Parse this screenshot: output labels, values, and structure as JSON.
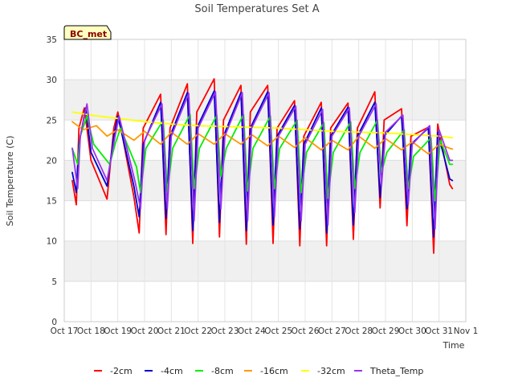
{
  "chart_data": {
    "type": "line",
    "title": "Soil Temperatures Set A",
    "xlabel": "Time",
    "ylabel": "Soil Temperature (C)",
    "badge": "BC_met",
    "ylim": [
      0,
      35
    ],
    "yticks": [
      0,
      5,
      10,
      15,
      20,
      25,
      30,
      35
    ],
    "xlim": [
      0,
      15
    ],
    "xticks": [
      {
        "value": 0,
        "label": "Oct 17"
      },
      {
        "value": 1,
        "label": "Oct 18"
      },
      {
        "value": 2,
        "label": "Oct 19"
      },
      {
        "value": 3,
        "label": "Oct 20"
      },
      {
        "value": 4,
        "label": "Oct 21"
      },
      {
        "value": 5,
        "label": "Oct 22"
      },
      {
        "value": 6,
        "label": "Oct 23"
      },
      {
        "value": 7,
        "label": "Oct 24"
      },
      {
        "value": 8,
        "label": "Oct 25"
      },
      {
        "value": 9,
        "label": "Oct 26"
      },
      {
        "value": 10,
        "label": "Oct 27"
      },
      {
        "value": 11,
        "label": "Oct 28"
      },
      {
        "value": 12,
        "label": "Oct 29"
      },
      {
        "value": 13,
        "label": "Oct 30"
      },
      {
        "value": 14,
        "label": "Oct 31"
      },
      {
        "value": 15,
        "label": "Nov 1"
      }
    ],
    "grid": true,
    "background_bands": "alternating gray",
    "legend_position": "bottom",
    "series": [
      {
        "name": "-2cm",
        "color": "#ff0000",
        "x": [
          0.3,
          0.45,
          0.55,
          0.75,
          1.0,
          1.6,
          1.85,
          2.0,
          2.6,
          2.8,
          2.95,
          3.6,
          3.8,
          3.95,
          4.6,
          4.8,
          4.95,
          5.6,
          5.8,
          5.95,
          6.6,
          6.8,
          6.95,
          7.6,
          7.8,
          7.95,
          8.6,
          8.8,
          8.95,
          9.6,
          9.8,
          9.95,
          10.6,
          10.8,
          10.95,
          11.6,
          11.8,
          11.95,
          12.6,
          12.8,
          12.95,
          13.6,
          13.8,
          13.95,
          14.4,
          14.5
        ],
        "y": [
          17.5,
          14.5,
          24,
          26.5,
          20,
          15.2,
          24,
          26,
          15.5,
          11,
          24,
          28.2,
          10.8,
          24,
          29.5,
          9.7,
          26,
          30.1,
          10.5,
          25,
          29.3,
          9.6,
          26,
          29.3,
          9.7,
          24,
          27.4,
          9.4,
          23,
          27.2,
          9.4,
          24,
          27.1,
          10.2,
          24,
          28.5,
          14.1,
          25,
          26.4,
          11.9,
          23,
          24.1,
          8.5,
          24.5,
          17,
          16.5
        ]
      },
      {
        "name": "-4cm",
        "color": "#0000cc",
        "x": [
          0.3,
          0.45,
          0.55,
          0.8,
          1.0,
          1.6,
          1.85,
          2.0,
          2.6,
          2.8,
          2.95,
          3.6,
          3.8,
          3.95,
          4.6,
          4.8,
          4.95,
          5.6,
          5.8,
          5.95,
          6.6,
          6.8,
          6.95,
          7.6,
          7.8,
          7.95,
          8.6,
          8.8,
          8.95,
          9.6,
          9.8,
          9.95,
          10.6,
          10.8,
          10.95,
          11.6,
          11.8,
          11.95,
          12.6,
          12.8,
          12.95,
          13.6,
          13.8,
          13.95,
          14.4,
          14.5
        ],
        "y": [
          18.5,
          16,
          22,
          26.5,
          21,
          16.8,
          23,
          25.5,
          16.8,
          13,
          22,
          27.2,
          12.8,
          23,
          28.4,
          11.3,
          24,
          28.6,
          12.3,
          23,
          28.4,
          11.3,
          24,
          28.5,
          12,
          23,
          26.8,
          11.5,
          22,
          26.5,
          11,
          23,
          26.6,
          12,
          23,
          27.2,
          15.4,
          23,
          25.5,
          14,
          22,
          24,
          10.5,
          23.5,
          17.7,
          17.5
        ]
      },
      {
        "name": "-8cm",
        "color": "#00ee00",
        "x": [
          0.3,
          0.5,
          0.6,
          0.85,
          1.1,
          1.7,
          1.9,
          2.1,
          2.7,
          2.85,
          3.05,
          3.7,
          3.85,
          4.05,
          4.7,
          4.85,
          5.05,
          5.7,
          5.85,
          6.05,
          6.7,
          6.85,
          7.05,
          7.7,
          7.85,
          8.05,
          8.7,
          8.85,
          9.05,
          9.7,
          9.85,
          10.05,
          10.7,
          10.85,
          11.05,
          11.7,
          11.85,
          12.05,
          12.7,
          12.85,
          13.05,
          13.7,
          13.85,
          14.05,
          14.4,
          14.5
        ],
        "y": [
          21.5,
          19.5,
          23,
          25.5,
          22,
          19.5,
          22,
          24,
          19.2,
          16,
          21.5,
          25,
          16,
          21.5,
          25.7,
          16.5,
          21.5,
          25.6,
          18,
          21.5,
          25.7,
          16.2,
          21.5,
          25.5,
          16.5,
          21.5,
          25,
          16,
          21,
          24.7,
          15.3,
          21,
          24.8,
          16.5,
          21,
          25,
          18.5,
          21,
          23.8,
          16.5,
          20.5,
          22.8,
          15,
          22.5,
          19.5,
          19.5
        ]
      },
      {
        "name": "-16cm",
        "color": "#ff9900",
        "x": [
          0.3,
          0.7,
          1.2,
          1.6,
          2.0,
          2.6,
          3.0,
          3.6,
          4.0,
          4.6,
          5.0,
          5.6,
          6.0,
          6.6,
          7.0,
          7.6,
          8.0,
          8.6,
          9.0,
          9.6,
          10.0,
          10.6,
          11.0,
          11.6,
          12.0,
          12.6,
          13.0,
          13.6,
          14.0,
          14.4,
          14.5
        ],
        "y": [
          24.8,
          23.8,
          24.3,
          23.0,
          23.8,
          22.5,
          23.6,
          22.0,
          23.5,
          22.0,
          23.3,
          22.0,
          23.3,
          22.0,
          23.2,
          21.8,
          23.0,
          21.6,
          22.8,
          21.3,
          22.5,
          21.3,
          23.0,
          21.5,
          22.7,
          21.3,
          22.3,
          20.8,
          22.0,
          21.5,
          21.4
        ]
      },
      {
        "name": "-32cm",
        "color": "#ffff00",
        "x": [
          0.3,
          1.0,
          2.0,
          3.0,
          4.0,
          5.0,
          6.0,
          7.0,
          8.0,
          9.0,
          10.0,
          11.0,
          12.0,
          13.0,
          14.0,
          14.5
        ],
        "y": [
          26,
          25.6,
          25.2,
          24.8,
          24.5,
          24.3,
          24.2,
          24.1,
          24,
          23.8,
          23.6,
          23.5,
          23.4,
          23.2,
          23,
          22.8
        ]
      },
      {
        "name": "Theta_Temp",
        "color": "#9933ee",
        "x": [
          0.3,
          0.5,
          0.6,
          0.85,
          1.05,
          1.6,
          1.9,
          2.05,
          2.65,
          2.85,
          3.0,
          3.65,
          3.85,
          4.0,
          4.65,
          4.85,
          5.0,
          5.65,
          5.85,
          6.0,
          6.65,
          6.85,
          7.0,
          7.65,
          7.85,
          8.0,
          8.65,
          8.85,
          9.0,
          9.65,
          9.85,
          10.0,
          10.65,
          10.85,
          11.0,
          11.65,
          11.85,
          12.0,
          12.65,
          12.85,
          13.0,
          13.65,
          13.85,
          14.0,
          14.4,
          14.5
        ],
        "y": [
          21.5,
          16.5,
          23,
          27,
          21.5,
          17.5,
          23,
          25.5,
          17.3,
          14,
          22.5,
          27,
          14,
          23,
          28.3,
          12.5,
          24,
          28.5,
          14,
          23,
          28.4,
          12.5,
          24,
          28.4,
          13,
          23,
          26.7,
          12.5,
          22,
          26.3,
          12,
          23,
          26.5,
          13.5,
          23,
          27,
          16.8,
          23.5,
          25.6,
          14.5,
          22,
          24.3,
          11.5,
          23.8,
          20,
          20
        ]
      }
    ]
  }
}
